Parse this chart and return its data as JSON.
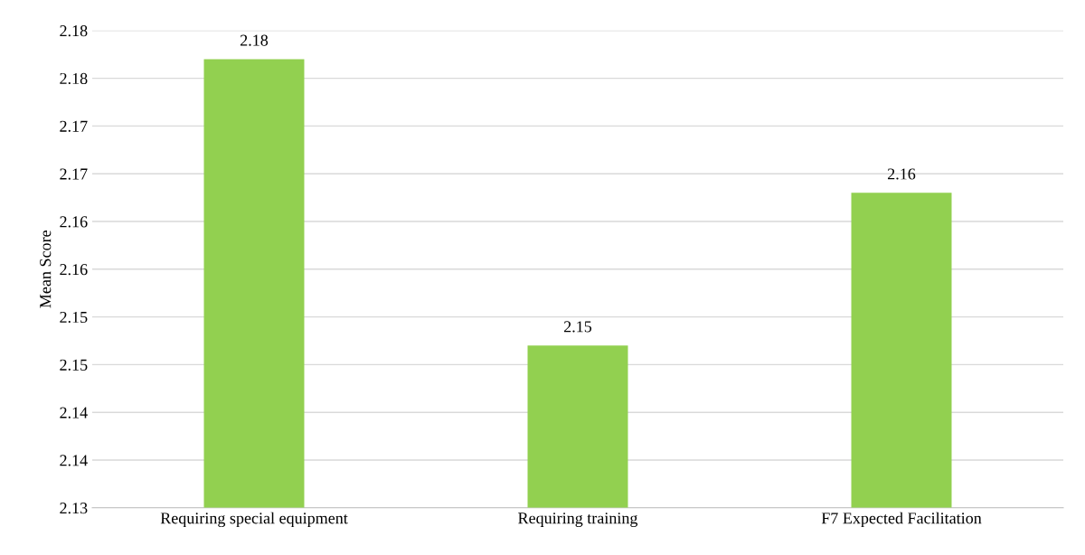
{
  "chart_data": {
    "type": "bar",
    "ylabel": "Mean Score",
    "categories": [
      "Requiring special equipment",
      "Requiring training",
      "F7 Expected Facilitation"
    ],
    "values": [
      2.177,
      2.147,
      2.163
    ],
    "value_labels": [
      "2.18",
      "2.15",
      "2.16"
    ],
    "color": "#92d050",
    "ylim": [
      2.13,
      2.18
    ],
    "yticks": [
      {
        "value": 2.13,
        "label": "2.13"
      },
      {
        "value": 2.135,
        "label": "2.14"
      },
      {
        "value": 2.14,
        "label": "2.14"
      },
      {
        "value": 2.145,
        "label": "2.15"
      },
      {
        "value": 2.15,
        "label": "2.15"
      },
      {
        "value": 2.155,
        "label": "2.16"
      },
      {
        "value": 2.16,
        "label": "2.16"
      },
      {
        "value": 2.165,
        "label": "2.17"
      },
      {
        "value": 2.17,
        "label": "2.17"
      },
      {
        "value": 2.175,
        "label": "2.18"
      },
      {
        "value": 2.18,
        "label": "2.18"
      }
    ],
    "grid": "y",
    "legend": false
  }
}
